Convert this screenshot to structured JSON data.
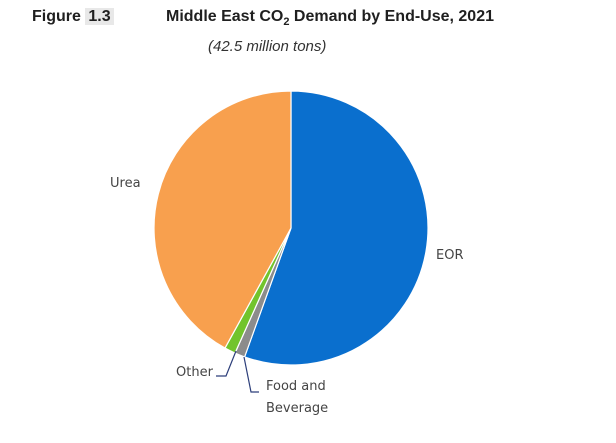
{
  "figure": {
    "label": "Figure",
    "number": "1.3",
    "title_prefix": "Middle East CO",
    "title_sub": "2",
    "title_suffix": " Demand by End-Use, 2021",
    "subtitle": "(42.5 million tons)"
  },
  "chart_data": {
    "type": "pie",
    "title": "Middle East CO2 Demand by End-Use, 2021",
    "subtitle": "(42.5 million tons)",
    "start_angle_deg": 0,
    "direction": "clockwise",
    "slices": [
      {
        "name": "EOR",
        "display": [
          "EOR"
        ],
        "value": 55.5,
        "color": "#0a6fce"
      },
      {
        "name": "Food and Beverage",
        "display": [
          "Food and",
          "Beverage"
        ],
        "value": 1.2,
        "color": "#8c8c8c"
      },
      {
        "name": "Other",
        "display": [
          "Other"
        ],
        "value": 1.3,
        "color": "#72c42c"
      },
      {
        "name": "Urea",
        "display": [
          "Urea"
        ],
        "value": 42.0,
        "color": "#f8a04e"
      }
    ]
  }
}
